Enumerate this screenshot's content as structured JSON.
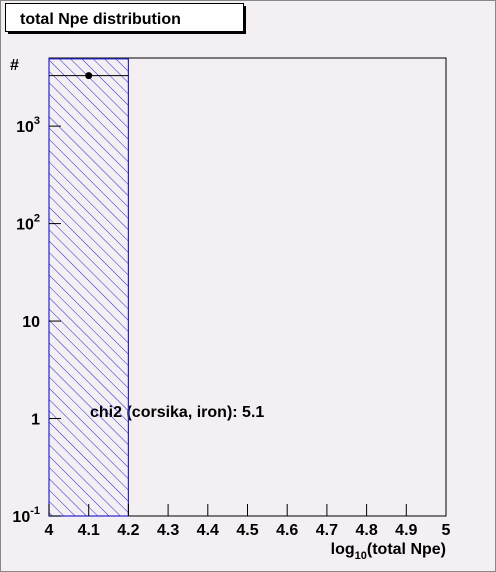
{
  "chart_data": {
    "type": "histogram",
    "title": "total Npe distribution",
    "x_label": {
      "text": "log",
      "subscript": "10",
      "rest": "(total Npe)"
    },
    "y_label": "#",
    "bins": [
      4.0,
      4.2
    ],
    "counts": [
      4900
    ],
    "color": "#2727c9",
    "points": {
      "x": [
        4.1
      ],
      "values": [
        3300
      ],
      "errors": [
        58
      ],
      "x_errors": [
        0.1
      ],
      "color": "#000000"
    },
    "annotation": "chi2 (corsika, iron): 5.1",
    "xlim": [
      4,
      5
    ],
    "xticks": [
      4,
      4.1,
      4.2,
      4.3,
      4.4,
      4.5,
      4.6,
      4.7,
      4.8,
      4.9,
      5
    ],
    "ylim": [
      0.1,
      5000
    ],
    "log_y": true,
    "yticks": [
      {
        "value": 0.1,
        "label": "10",
        "exponent": "-1"
      },
      1,
      10,
      {
        "value": 100,
        "label": "10",
        "exponent": "2"
      },
      {
        "value": 1000,
        "label": "10",
        "exponent": "3"
      }
    ],
    "grid": false
  }
}
